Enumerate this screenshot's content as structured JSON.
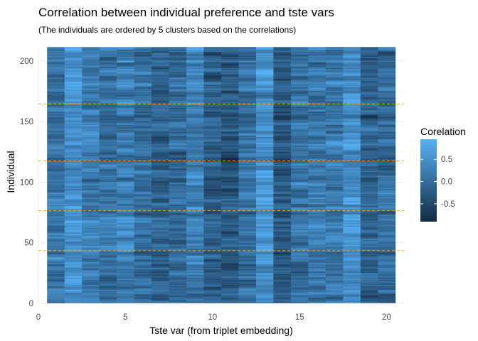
{
  "chart_data": {
    "type": "heatmap",
    "title": "Correlation between individual preference and tste vars",
    "subtitle": "(The individuals are ordered by 5 clusters based on the correlations)",
    "xlabel": "Tste var (from triplet embedding)",
    "ylabel": "Individual",
    "x": [
      1,
      2,
      3,
      4,
      5,
      6,
      7,
      8,
      9,
      10,
      11,
      12,
      13,
      14,
      15,
      16,
      17,
      18,
      19,
      20
    ],
    "y_range": [
      1,
      211
    ],
    "xlim": [
      0,
      21
    ],
    "ylim": [
      0,
      211
    ],
    "x_ticks": [
      0,
      5,
      10,
      15,
      20
    ],
    "y_ticks": [
      0,
      50,
      100,
      150,
      200
    ],
    "cluster_boundaries": [
      43.5,
      76.5,
      117.5,
      164.5
    ],
    "cluster_line_color": "#ffa500",
    "cell_values": "not individually legible (about 4,220 cells); rendered as a pseudo-random field spanning the color scale",
    "value_range": [
      -0.9,
      0.95
    ],
    "grid": true,
    "legend": {
      "title": "Corelation",
      "position": "right",
      "breaks": [
        0.5,
        0.0,
        -0.5
      ],
      "break_labels": [
        "0.5",
        "0.0",
        "-0.5"
      ],
      "low_color": "#132b43",
      "high_color": "#56b1f7"
    }
  }
}
